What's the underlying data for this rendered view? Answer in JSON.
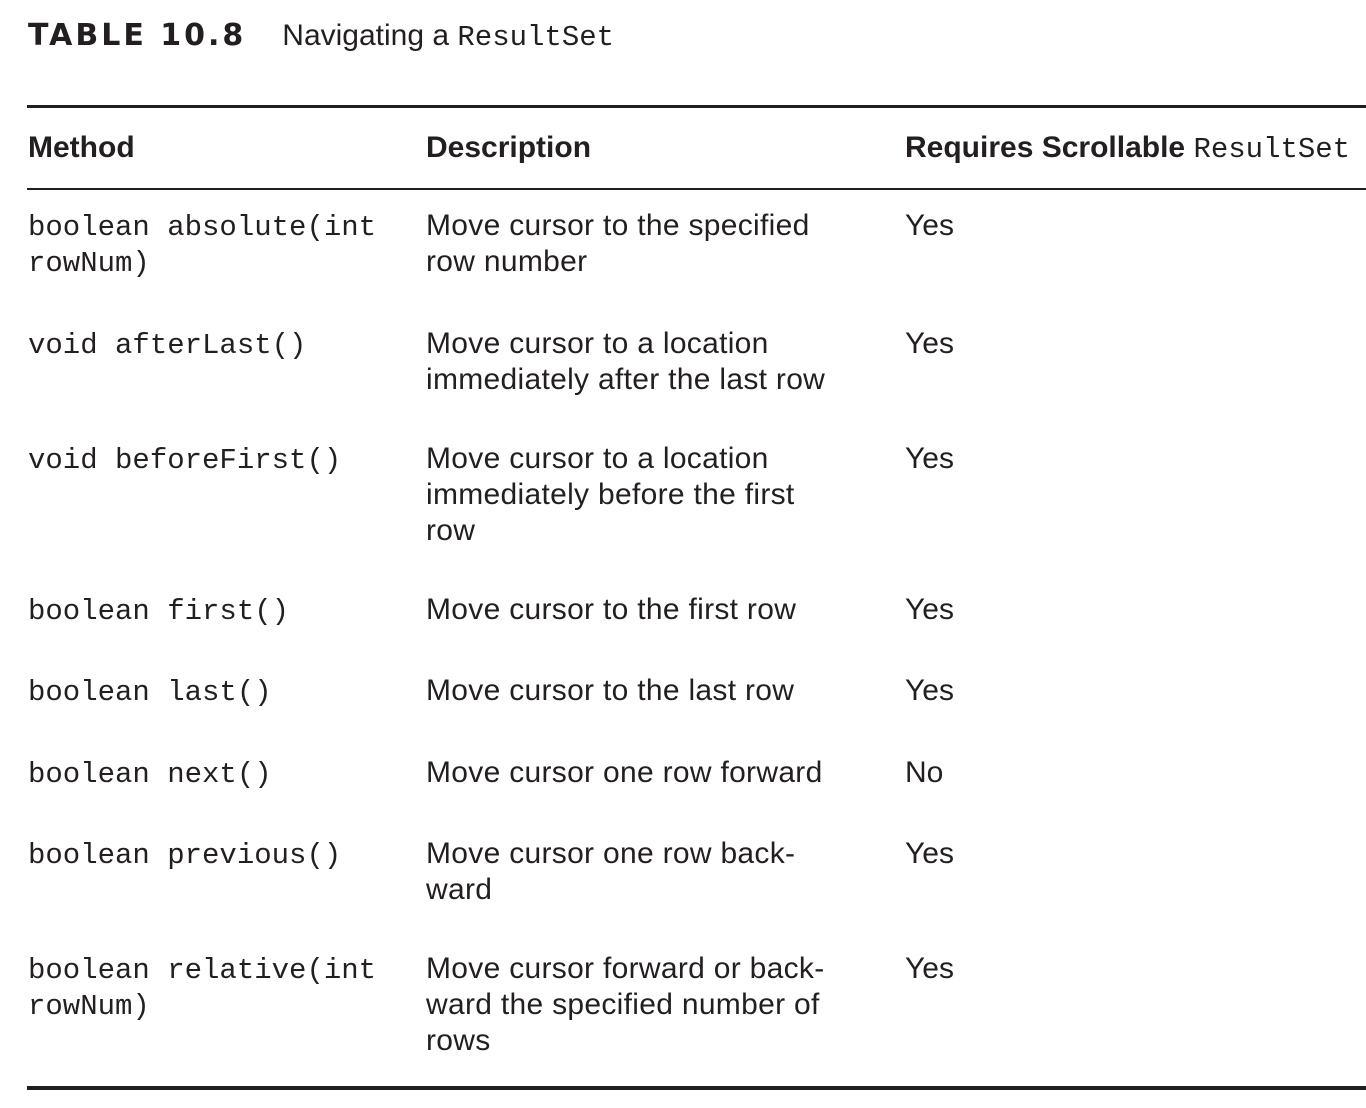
{
  "caption": {
    "label": "TABLE 10.8",
    "title_text": "Navigating a ",
    "title_code": "ResultSet"
  },
  "headers": {
    "method": "Method",
    "description": "Description",
    "requires_text": "Requires Scrollable ",
    "requires_code": "ResultSet"
  },
  "rows": [
    {
      "method": [
        "boolean absolute(int",
        "rowNum)"
      ],
      "description": [
        "Move cursor to the specified",
        "row number"
      ],
      "requires": "Yes"
    },
    {
      "method": [
        "void afterLast()"
      ],
      "description": [
        "Move cursor to a location",
        "immediately after the last row"
      ],
      "requires": "Yes"
    },
    {
      "method": [
        "void beforeFirst()"
      ],
      "description": [
        "Move cursor to a location",
        "immediately before the first",
        "row"
      ],
      "requires": "Yes"
    },
    {
      "method": [
        "boolean first()"
      ],
      "description": [
        "Move cursor to the first row"
      ],
      "requires": "Yes"
    },
    {
      "method": [
        "boolean last()"
      ],
      "description": [
        "Move cursor to the last row"
      ],
      "requires": "Yes"
    },
    {
      "method": [
        "boolean next()"
      ],
      "description": [
        "Move cursor one row forward"
      ],
      "requires": "No"
    },
    {
      "method": [
        "boolean previous()"
      ],
      "description": [
        "Move cursor one row back-",
        "ward"
      ],
      "requires": "Yes"
    },
    {
      "method": [
        "boolean relative(int",
        "rowNum)"
      ],
      "description": [
        "Move cursor forward or back-",
        "ward the specified number of",
        "rows"
      ],
      "requires": "Yes"
    }
  ]
}
